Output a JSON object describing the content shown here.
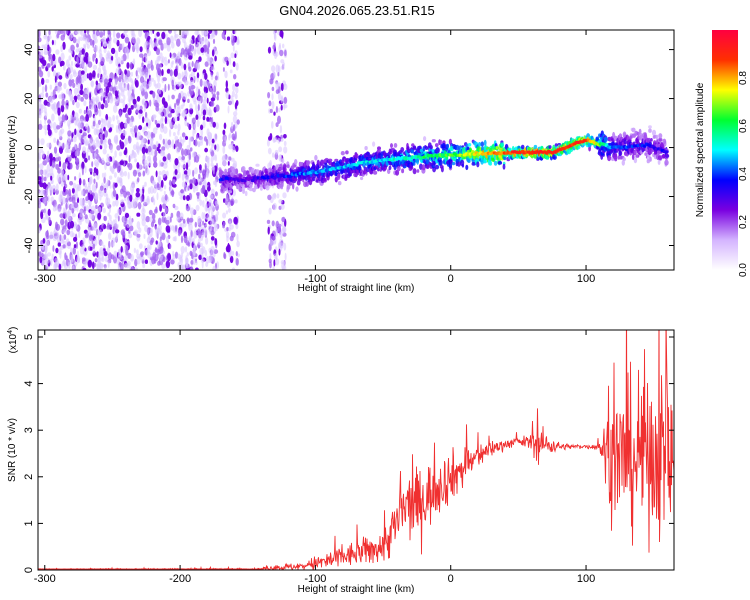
{
  "title": "GN04.2026.065.23.51.R15",
  "chart_data": [
    {
      "type": "heatmap",
      "xlabel": "Height of straight line (km)",
      "ylabel": "Frequency (Hz)",
      "xlim": [
        -305,
        165
      ],
      "ylim": [
        -50,
        48
      ],
      "xticks": [
        -300,
        -200,
        -100,
        0,
        100
      ],
      "yticks": [
        -40,
        -20,
        0,
        20,
        40
      ],
      "colorbar": {
        "label": "Normalized spectral amplitude",
        "ticks": [
          "0.0",
          "0.2",
          "0.4",
          "0.6",
          "0.8"
        ],
        "range": [
          0,
          1
        ],
        "colors": [
          "#ffffff",
          "#d4b4ff",
          "#7a00e0",
          "#0000ff",
          "#00ffff",
          "#00ff30",
          "#ffff00",
          "#ff3000",
          "#ff0040"
        ]
      },
      "signal_track": {
        "x": [
          -170,
          -150,
          -100,
          -50,
          0,
          50,
          75,
          100,
          120,
          145,
          160
        ],
        "frequency": [
          -13,
          -13,
          -10,
          -5,
          -3,
          -2,
          -2,
          3,
          0,
          1,
          -2
        ],
        "amplitude": [
          0.3,
          0.25,
          0.4,
          0.45,
          0.6,
          0.85,
          0.85,
          0.85,
          0.35,
          0.3,
          0.3
        ]
      },
      "noise_regions": [
        {
          "x": [
            -305,
            -172
          ],
          "amplitude": 0.2
        },
        {
          "x": [
            -168,
            -157
          ],
          "amplitude": 0.15
        },
        {
          "x": [
            -135,
            -122
          ],
          "amplitude": 0.15
        }
      ]
    },
    {
      "type": "area",
      "xlabel": "Height of straight line (km)",
      "ylabel": "SNR (10 * v/v)",
      "multiplier": "(x10",
      "multiplier_exp": "4",
      "multiplier_close": ")",
      "xlim": [
        -305,
        165
      ],
      "ylim": [
        0,
        5.15
      ],
      "xticks": [
        -300,
        -200,
        -100,
        0,
        100
      ],
      "yticks": [
        0,
        1,
        2,
        3,
        4,
        5
      ],
      "color": "#f03030",
      "envelope": {
        "x": [
          -305,
          -140,
          -130,
          -110,
          -90,
          -70,
          -50,
          -40,
          -35,
          -20,
          -10,
          0,
          10,
          20,
          30,
          40,
          50,
          60,
          65,
          70,
          80,
          90,
          100,
          110,
          115,
          120,
          130,
          140,
          150,
          160,
          165
        ],
        "center": [
          0.02,
          0.02,
          0.05,
          0.08,
          0.2,
          0.35,
          0.5,
          1.0,
          1.3,
          1.5,
          1.8,
          2.0,
          2.2,
          2.45,
          2.6,
          2.7,
          2.75,
          2.75,
          2.7,
          2.7,
          2.65,
          2.65,
          2.65,
          2.65,
          2.5,
          2.4,
          2.4,
          2.5,
          2.6,
          2.4,
          2.5
        ],
        "spread": [
          0.01,
          0.02,
          0.06,
          0.1,
          0.25,
          0.3,
          0.4,
          0.7,
          0.8,
          0.8,
          0.7,
          0.6,
          0.5,
          0.3,
          0.2,
          0.12,
          0.1,
          0.2,
          0.5,
          0.3,
          0.1,
          0.05,
          0.05,
          0.1,
          1.0,
          1.4,
          1.8,
          2.0,
          2.0,
          2.0,
          2.0
        ]
      }
    }
  ]
}
